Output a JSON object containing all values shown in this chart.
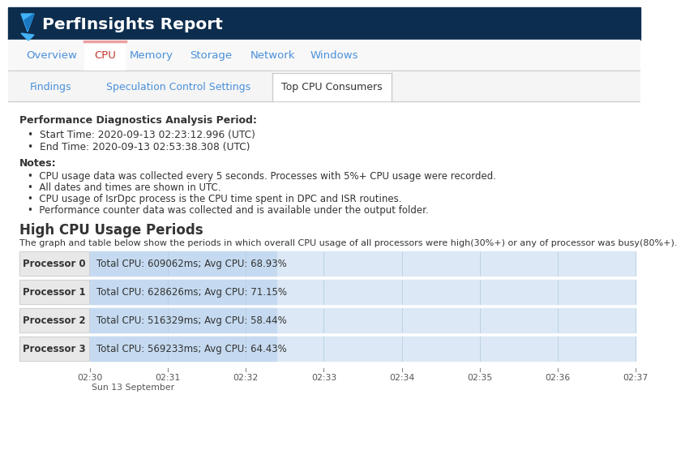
{
  "header_bg": "#0d2d4e",
  "header_text": "PerfInsights Report",
  "header_text_color": "#ffffff",
  "nav_tabs": [
    "Overview",
    "CPU",
    "Memory",
    "Storage",
    "Network",
    "Windows"
  ],
  "nav_active": "CPU",
  "sub_tabs": [
    "Findings",
    "Speculation Control Settings",
    "Top CPU Consumers"
  ],
  "sub_active": "Top CPU Consumers",
  "section1_title": "Performance Diagnostics Analysis Period:",
  "bullet1": "Start Time: 2020-09-13 02:23:12.996 (UTC)",
  "bullet2": "End Time: 2020-09-13 02:53:38.308 (UTC)",
  "notes_title": "Notes:",
  "note1": "CPU usage data was collected every 5 seconds. Processes with 5%+ CPU usage were recorded.",
  "note2": "All dates and times are shown in UTC.",
  "note3": "CPU usage of IsrDpc process is the CPU time spent in DPC and ISR routines.",
  "note4": "Performance counter data was collected and is available under the output folder.",
  "section2_title": "High CPU Usage Periods",
  "section2_desc": "The graph and table below show the periods in which overall CPU usage of all processors were high(30%+) or any of processor was busy(80%+).",
  "processors": [
    {
      "name": "Processor 0",
      "label": "Total CPU: 609062ms; Avg CPU: 68.93%"
    },
    {
      "name": "Processor 1",
      "label": "Total CPU: 628626ms; Avg CPU: 71.15%"
    },
    {
      "name": "Processor 2",
      "label": "Total CPU: 516329ms; Avg CPU: 58.44%"
    },
    {
      "name": "Processor 3",
      "label": "Total CPU: 569233ms; Avg CPU: 64.43%"
    }
  ],
  "time_ticks": [
    "02:30",
    "02:31",
    "02:32",
    "02:33",
    "02:34",
    "02:35",
    "02:36",
    "02:37"
  ],
  "time_sublabel": "Sun 13 September",
  "bar_bg_color": "#dce8f5",
  "bar_label_bg": "#c5daf0",
  "proc_label_bg": "#e8e8e8",
  "body_bg": "#ffffff",
  "text_color": "#333333",
  "link_color": "#4a90d9",
  "nav_active_tab_border": "#e8a0a0"
}
